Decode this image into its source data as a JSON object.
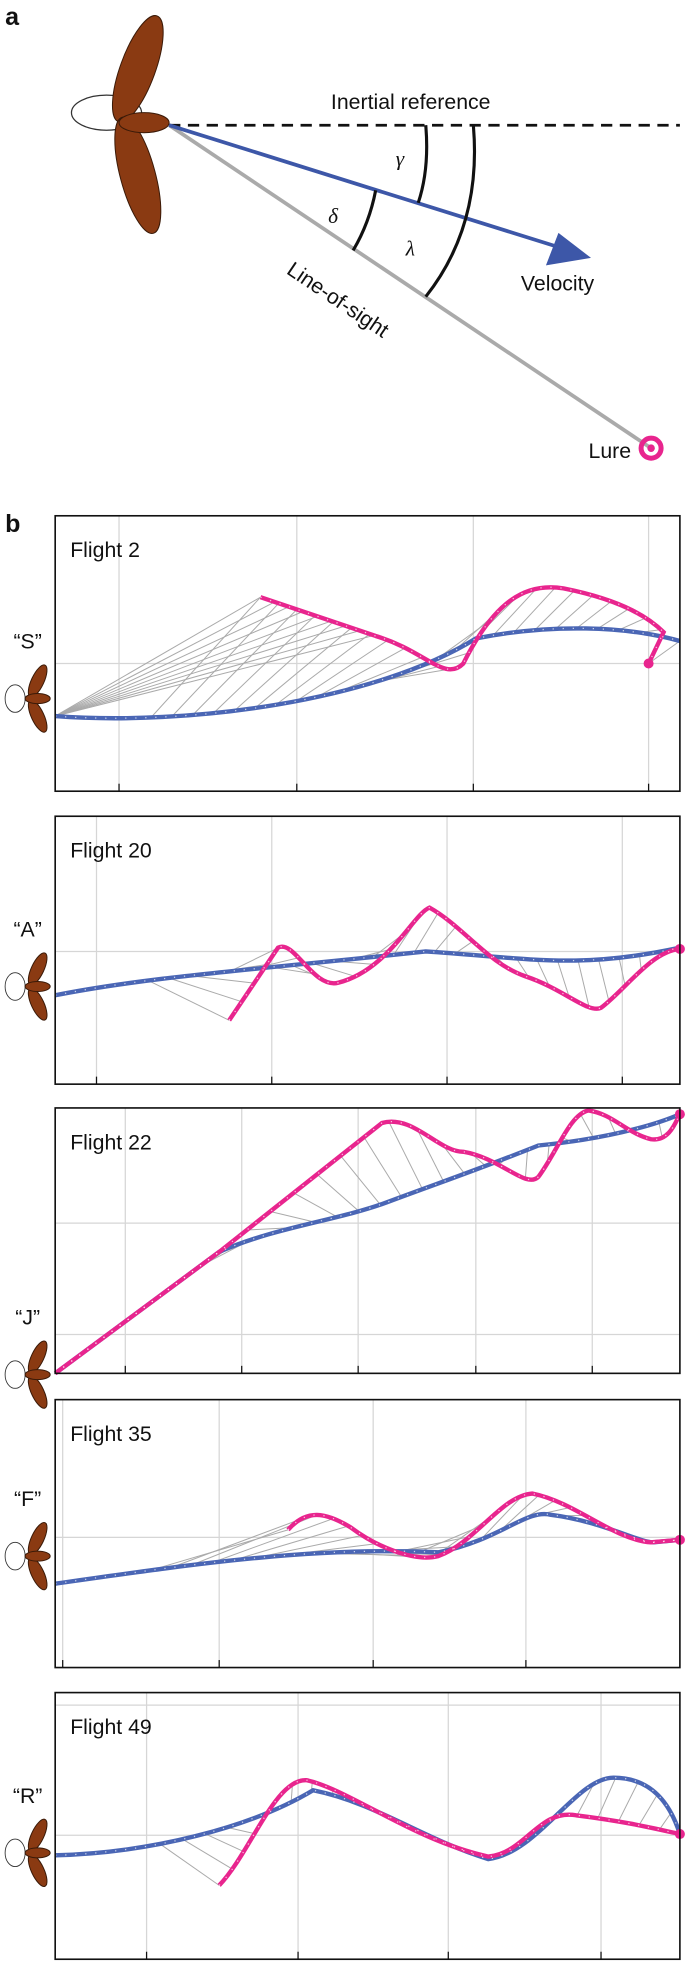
{
  "panel_a": {
    "label": "a",
    "inertial_reference": "Inertial reference",
    "gamma": "γ",
    "delta": "δ",
    "lambda": "λ",
    "velocity": "Velocity",
    "line_of_sight": "Line-of-sight",
    "lure": "Lure"
  },
  "panel_b": {
    "label": "b",
    "flights": [
      {
        "title": "Flight 2",
        "letter": "“S”"
      },
      {
        "title": "Flight 20",
        "letter": "“A”"
      },
      {
        "title": "Flight 22",
        "letter": "“J”"
      },
      {
        "title": "Flight 35",
        "letter": "“F”"
      },
      {
        "title": "Flight 49",
        "letter": "“R”"
      }
    ]
  }
}
